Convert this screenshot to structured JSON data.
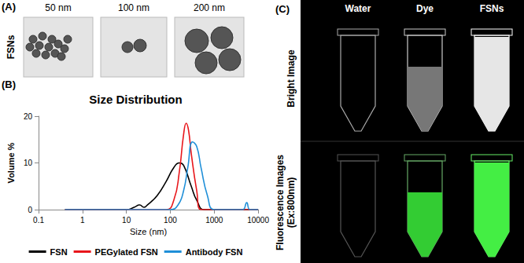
{
  "chart_data": {
    "type": "line",
    "title": "Size Distribution",
    "x_label": "Size (nm)",
    "y_label": "Volume %",
    "xlim": [
      0.1,
      10000
    ],
    "xticks": [
      0.1,
      1,
      10,
      100,
      1000,
      10000
    ],
    "ylim": [
      0,
      20
    ],
    "yticks": [
      0,
      10,
      20
    ],
    "log": "x",
    "grid": false,
    "legend": "bottom",
    "series": [
      {
        "name": "FSN",
        "color": "#000000",
        "x": [
          0.4,
          10,
          15,
          20,
          25,
          30,
          50,
          80,
          120,
          160,
          200,
          300,
          400,
          600,
          10000
        ],
        "values": [
          0,
          0,
          0.5,
          1,
          0.5,
          1,
          3,
          6,
          9,
          10,
          9.5,
          5,
          2,
          0,
          0
        ]
      },
      {
        "name": "PEGylated FSN",
        "color": "#e8161b",
        "x": [
          0.4,
          80,
          120,
          160,
          200,
          230,
          260,
          300,
          400,
          500,
          10000
        ],
        "values": [
          0,
          0,
          2,
          8,
          16,
          18.5,
          17,
          12,
          4,
          0,
          0
        ]
      },
      {
        "name": "Antibody FSN",
        "color": "#1f8fd8",
        "x": [
          0.4,
          100,
          150,
          200,
          250,
          320,
          400,
          500,
          700,
          1000,
          3000,
          4500,
          5500,
          6500,
          10000
        ],
        "values": [
          0,
          0,
          1,
          4,
          9,
          14.5,
          13.5,
          9,
          3,
          0,
          0,
          0,
          1.5,
          0,
          0
        ]
      }
    ]
  },
  "panels": {
    "A": {
      "label": "(A)",
      "row_label": "FSNs",
      "columns": [
        "50 nm",
        "100 nm",
        "200 nm"
      ]
    },
    "B": {
      "label": "(B)"
    },
    "C": {
      "label": "(C)",
      "columns": [
        "Water",
        "Dye",
        "FSNs"
      ],
      "rows": [
        {
          "lines": [
            "Bright Image"
          ]
        },
        {
          "lines": [
            "Fluorescence  Images",
            "(Ex:800nm)"
          ]
        }
      ]
    }
  }
}
